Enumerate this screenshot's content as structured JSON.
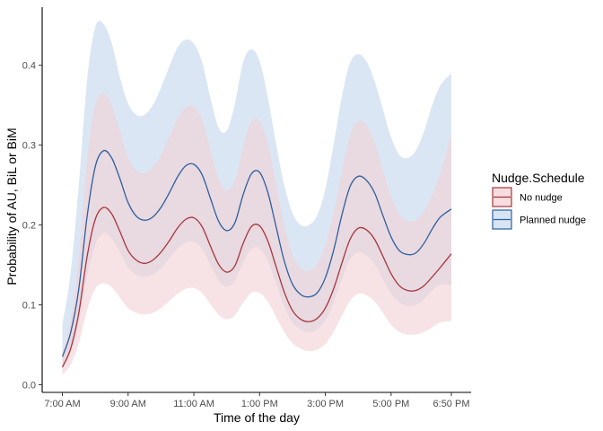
{
  "chart_data": {
    "type": "area",
    "title": "",
    "xlabel": "Time of the day",
    "ylabel": "Probability of AU, BiL or BiM",
    "x_unit": "hours",
    "xlim": [
      7.0,
      18.833
    ],
    "ylim": [
      0.0,
      0.45
    ],
    "x_ticks": [
      {
        "value": 7.0,
        "label": "7:00 AM"
      },
      {
        "value": 9.0,
        "label": "9:00 AM"
      },
      {
        "value": 11.0,
        "label": "11:00 AM"
      },
      {
        "value": 13.0,
        "label": "1:00 PM"
      },
      {
        "value": 15.0,
        "label": "3:00 PM"
      },
      {
        "value": 17.0,
        "label": "5:00 PM"
      },
      {
        "value": 18.833,
        "label": "6:50 PM"
      }
    ],
    "y_ticks": [
      {
        "value": 0.0,
        "label": "0.0"
      },
      {
        "value": 0.1,
        "label": "0.1"
      },
      {
        "value": 0.2,
        "label": "0.2"
      },
      {
        "value": 0.3,
        "label": "0.3"
      },
      {
        "value": 0.4,
        "label": "0.4"
      }
    ],
    "grid": false,
    "legend": {
      "title": "Nudge.Schedule",
      "position": "right"
    },
    "x": [
      7.0,
      7.25,
      7.5,
      7.75,
      8.0,
      8.25,
      8.5,
      8.75,
      9.0,
      9.25,
      9.5,
      9.75,
      10.0,
      10.25,
      10.5,
      10.75,
      11.0,
      11.25,
      11.5,
      11.75,
      12.0,
      12.25,
      12.5,
      12.75,
      13.0,
      13.25,
      13.5,
      13.75,
      14.0,
      14.25,
      14.5,
      14.75,
      15.0,
      15.25,
      15.5,
      15.75,
      16.0,
      16.25,
      16.5,
      16.75,
      17.0,
      17.25,
      17.5,
      17.75,
      18.0,
      18.25,
      18.5,
      18.833
    ],
    "series": [
      {
        "name": "No nudge",
        "color": "#a6363d",
        "fill": "#f2d0d3",
        "y": [
          0.022,
          0.045,
          0.09,
          0.16,
          0.207,
          0.222,
          0.214,
          0.192,
          0.168,
          0.156,
          0.152,
          0.156,
          0.166,
          0.18,
          0.196,
          0.207,
          0.209,
          0.198,
          0.174,
          0.151,
          0.141,
          0.149,
          0.177,
          0.198,
          0.199,
          0.18,
          0.148,
          0.116,
          0.093,
          0.082,
          0.079,
          0.083,
          0.096,
          0.12,
          0.152,
          0.182,
          0.196,
          0.194,
          0.182,
          0.161,
          0.139,
          0.124,
          0.118,
          0.118,
          0.124,
          0.135,
          0.147,
          0.164
        ],
        "lower": [
          0.012,
          0.025,
          0.052,
          0.093,
          0.12,
          0.127,
          0.122,
          0.109,
          0.096,
          0.09,
          0.088,
          0.09,
          0.096,
          0.105,
          0.114,
          0.12,
          0.121,
          0.115,
          0.101,
          0.088,
          0.082,
          0.087,
          0.103,
          0.115,
          0.115,
          0.104,
          0.085,
          0.066,
          0.052,
          0.045,
          0.042,
          0.044,
          0.051,
          0.066,
          0.086,
          0.105,
          0.114,
          0.112,
          0.104,
          0.09,
          0.075,
          0.066,
          0.063,
          0.063,
          0.066,
          0.072,
          0.078,
          0.08
        ],
        "upper": [
          0.04,
          0.08,
          0.16,
          0.28,
          0.35,
          0.365,
          0.35,
          0.318,
          0.284,
          0.268,
          0.265,
          0.272,
          0.288,
          0.31,
          0.333,
          0.347,
          0.348,
          0.332,
          0.295,
          0.258,
          0.243,
          0.255,
          0.298,
          0.33,
          0.33,
          0.302,
          0.252,
          0.2,
          0.163,
          0.146,
          0.143,
          0.151,
          0.175,
          0.215,
          0.266,
          0.312,
          0.33,
          0.325,
          0.304,
          0.269,
          0.236,
          0.214,
          0.205,
          0.206,
          0.217,
          0.238,
          0.265,
          0.312
        ]
      },
      {
        "name": "Planned nudge",
        "color": "#2c5f9e",
        "fill": "#c7d8ee",
        "y": [
          0.035,
          0.065,
          0.12,
          0.21,
          0.273,
          0.293,
          0.284,
          0.258,
          0.228,
          0.211,
          0.206,
          0.21,
          0.222,
          0.24,
          0.26,
          0.274,
          0.276,
          0.263,
          0.234,
          0.205,
          0.193,
          0.203,
          0.238,
          0.264,
          0.266,
          0.241,
          0.198,
          0.155,
          0.126,
          0.113,
          0.11,
          0.115,
          0.134,
          0.168,
          0.212,
          0.248,
          0.261,
          0.256,
          0.24,
          0.212,
          0.185,
          0.168,
          0.163,
          0.165,
          0.177,
          0.195,
          0.21,
          0.22
        ],
        "lower": [
          0.02,
          0.04,
          0.075,
          0.135,
          0.175,
          0.19,
          0.183,
          0.166,
          0.147,
          0.138,
          0.135,
          0.138,
          0.146,
          0.158,
          0.17,
          0.178,
          0.179,
          0.17,
          0.15,
          0.131,
          0.123,
          0.13,
          0.153,
          0.17,
          0.171,
          0.155,
          0.127,
          0.098,
          0.078,
          0.069,
          0.066,
          0.069,
          0.081,
          0.103,
          0.132,
          0.157,
          0.166,
          0.162,
          0.151,
          0.132,
          0.114,
          0.103,
          0.099,
          0.1,
          0.107,
          0.118,
          0.125,
          0.125
        ],
        "upper": [
          0.075,
          0.14,
          0.25,
          0.38,
          0.448,
          0.452,
          0.428,
          0.385,
          0.352,
          0.338,
          0.338,
          0.35,
          0.372,
          0.398,
          0.422,
          0.432,
          0.427,
          0.404,
          0.36,
          0.322,
          0.318,
          0.352,
          0.404,
          0.42,
          0.405,
          0.36,
          0.302,
          0.25,
          0.215,
          0.2,
          0.2,
          0.212,
          0.245,
          0.3,
          0.36,
          0.403,
          0.414,
          0.405,
          0.38,
          0.345,
          0.31,
          0.288,
          0.284,
          0.293,
          0.317,
          0.35,
          0.375,
          0.39
        ]
      }
    ]
  }
}
